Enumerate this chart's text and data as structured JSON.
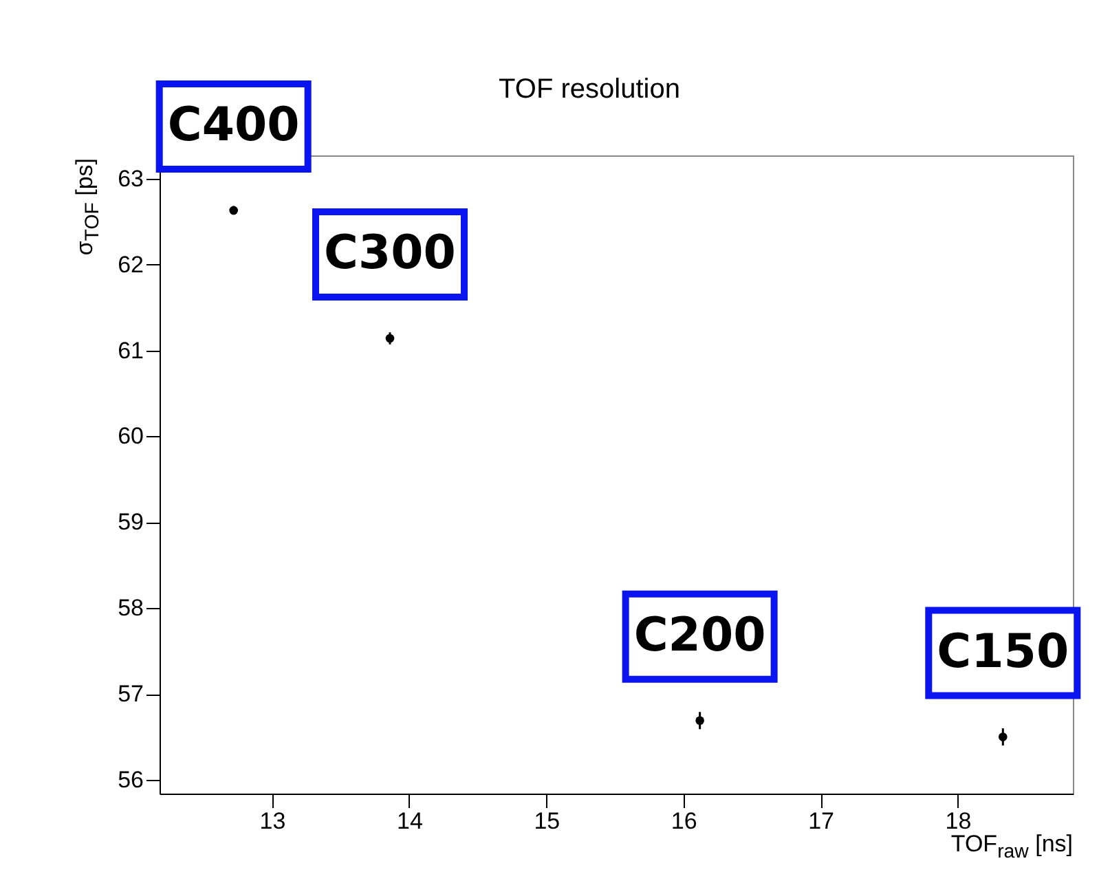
{
  "chart_data": {
    "type": "scatter",
    "title": "TOF resolution",
    "xlabel": "TOF$_{raw}$ [ns]",
    "ylabel": "σ$_{TOF}$ [ps]",
    "x": [
      12.72,
      13.86,
      16.12,
      18.33
    ],
    "series": [
      {
        "color": "#000000",
        "values": [
          62.63,
          61.14,
          56.69,
          56.5
        ],
        "errors": [
          0.05,
          0.07,
          0.1,
          0.1
        ]
      }
    ],
    "xlim": [
      12.18,
      18.84
    ],
    "xticks": [
      13,
      14,
      15,
      16,
      17,
      18
    ],
    "ylim": [
      55.84,
      63.27
    ],
    "yticks": [
      56,
      57,
      58,
      59,
      60,
      61,
      62,
      63
    ],
    "marker": "circle",
    "grid": false,
    "annotations": [
      {
        "text": "C400",
        "x": 12.72,
        "y": 62.63
      },
      {
        "text": "C300",
        "x": 13.86,
        "y": 61.14
      },
      {
        "text": "C200",
        "x": 16.12,
        "y": 56.69
      },
      {
        "text": "C150",
        "x": 18.33,
        "y": 56.5
      }
    ]
  }
}
